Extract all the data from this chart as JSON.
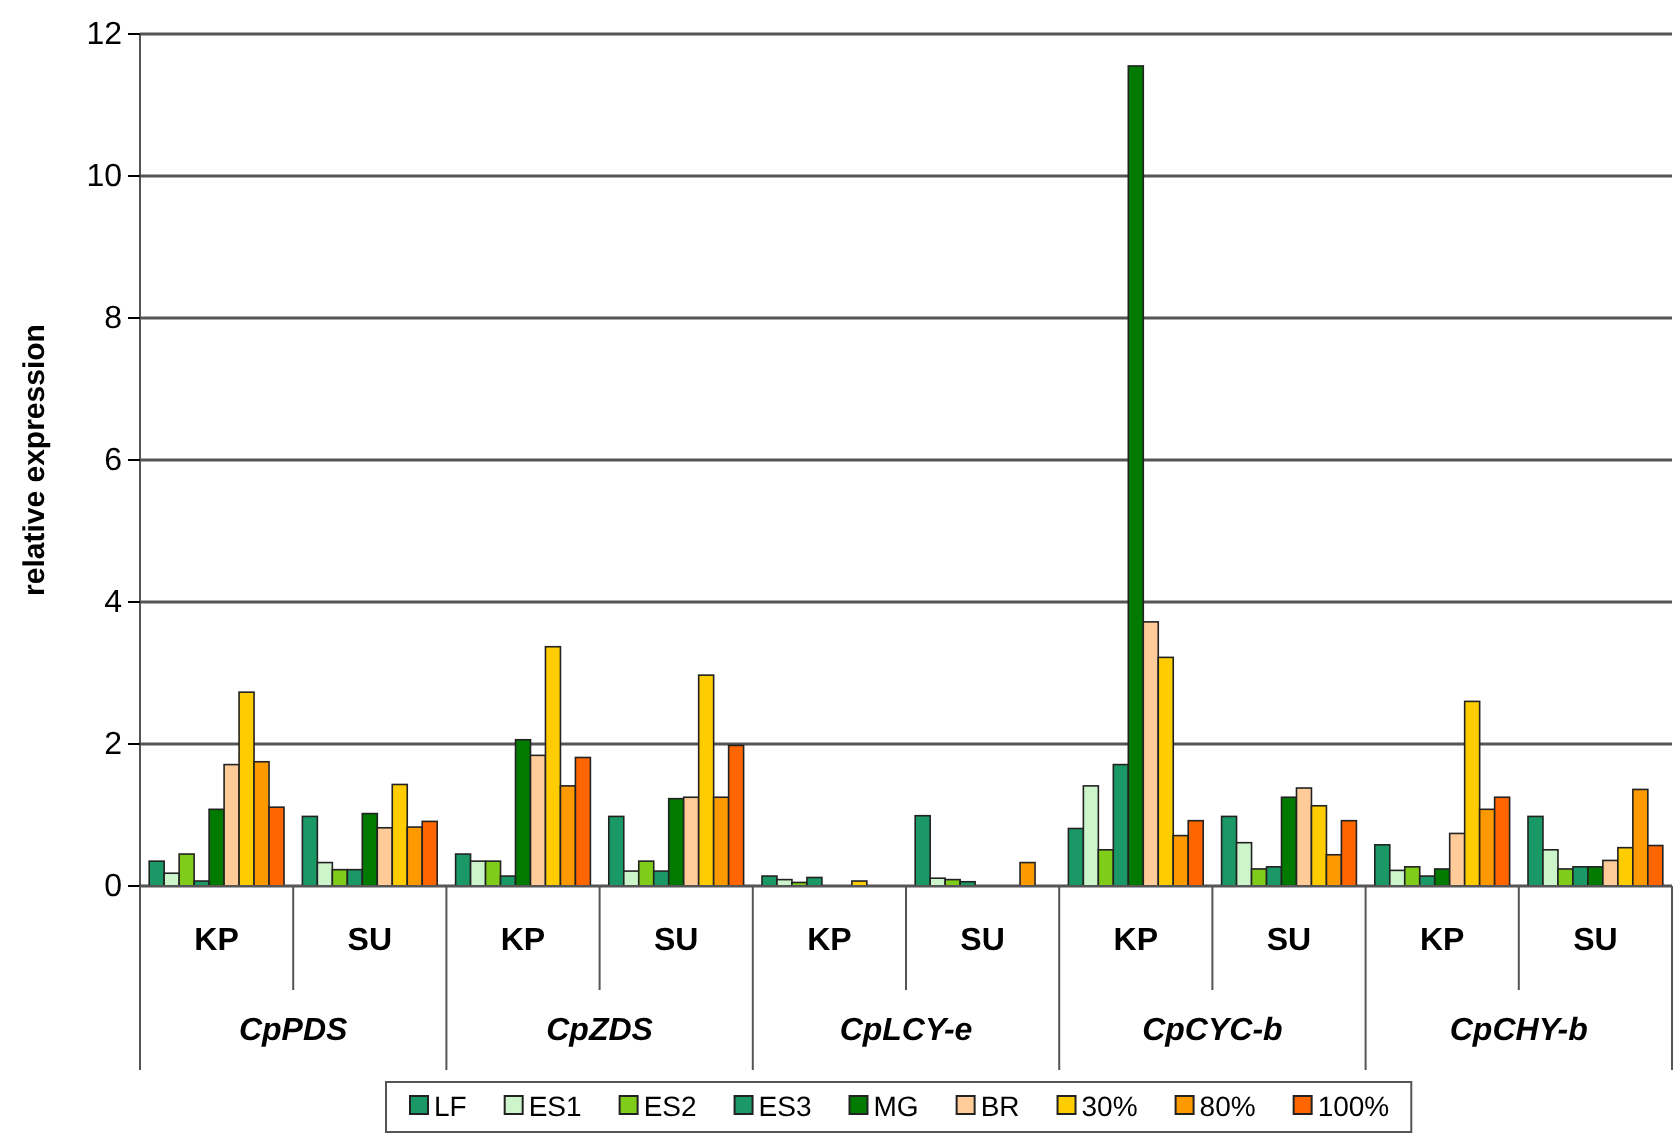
{
  "chart_data": {
    "type": "bar",
    "ylabel": "relative expression",
    "categories": [
      "KP",
      "SU",
      "KP",
      "SU",
      "KP",
      "SU",
      "KP",
      "SU",
      "KP",
      "SU"
    ],
    "annotations": [
      "CpPDS",
      "CpZDS",
      "CpLCY-e",
      "CpCYC-b",
      "CpCHY-b"
    ],
    "ylim": [
      0,
      12
    ],
    "yticks": [
      0,
      2,
      4,
      6,
      8,
      10,
      12
    ],
    "grid": "y",
    "legend": "bottom",
    "series": [
      {
        "name": "LF",
        "color": "#1a9966",
        "values": [
          0.35,
          0.98,
          0.45,
          0.98,
          0.14,
          0.99,
          0.81,
          0.98,
          0.58,
          0.98
        ]
      },
      {
        "name": "ES1",
        "color": "#ccf5cc",
        "values": [
          0.18,
          0.33,
          0.35,
          0.21,
          0.09,
          0.11,
          1.41,
          0.61,
          0.22,
          0.51
        ]
      },
      {
        "name": "ES2",
        "color": "#80cc1a",
        "values": [
          0.45,
          0.23,
          0.35,
          0.35,
          0.05,
          0.09,
          0.51,
          0.24,
          0.27,
          0.24
        ]
      },
      {
        "name": "ES3",
        "color": "#1a9966",
        "values": [
          0.07,
          0.23,
          0.14,
          0.21,
          0.12,
          0.06,
          1.71,
          0.27,
          0.14,
          0.27
        ]
      },
      {
        "name": "MG",
        "color": "#007a00",
        "values": [
          1.08,
          1.02,
          2.06,
          1.23,
          null,
          null,
          11.55,
          1.25,
          0.24,
          0.27
        ]
      },
      {
        "name": "BR",
        "color": "#ffcc99",
        "values": [
          1.71,
          0.82,
          1.84,
          1.25,
          0,
          null,
          3.72,
          1.38,
          0.74,
          0.36
        ]
      },
      {
        "name": "30%",
        "color": "#ffcc00",
        "values": [
          2.73,
          1.43,
          3.37,
          2.97,
          0.07,
          0,
          3.22,
          1.13,
          2.6,
          0.54
        ]
      },
      {
        "name": "80%",
        "color": "#ff9900",
        "values": [
          1.75,
          0.83,
          1.41,
          1.25,
          0,
          0.33,
          0.71,
          0.44,
          1.08,
          1.36
        ]
      },
      {
        "name": "100%",
        "color": "#ff6600",
        "values": [
          1.11,
          0.91,
          1.81,
          1.98,
          null,
          0,
          0.92,
          0.92,
          1.25,
          0.57
        ]
      }
    ]
  }
}
